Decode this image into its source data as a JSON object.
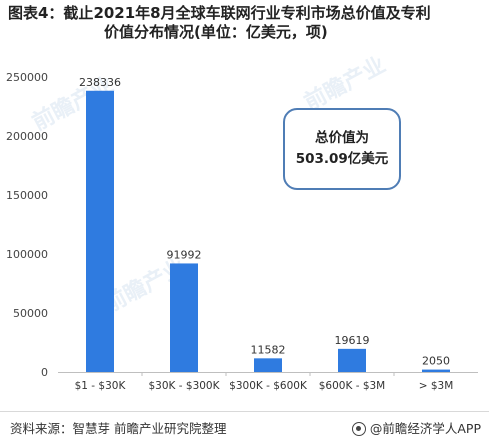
{
  "header": {
    "title_line1": "图表4：截止2021年8月全球车联网行业专利市场总价值及专利",
    "title_line2": "价值分布情况(单位：亿美元，项)"
  },
  "callout": {
    "line1": "总价值为",
    "line2": "503.09亿美元"
  },
  "footer": {
    "source": "资料来源：智慧芽 前瞻产业研究院整理",
    "brand": "@前瞻经济学人APP"
  },
  "watermark": {
    "text": "前瞻产业"
  },
  "colors": {
    "bar": "#2f7be0",
    "callout_border": "#4f7db5",
    "axis": "#bfbfbf"
  },
  "chart_data": {
    "type": "bar",
    "title": "",
    "xlabel": "",
    "ylabel": "",
    "categories": [
      "$1 - $30K",
      "$30K - $300K",
      "$300K - $600K",
      "$600K - $3M",
      "> $3M"
    ],
    "values": [
      238336,
      91992,
      11582,
      19619,
      2050
    ],
    "data_labels": [
      "238336",
      "91992",
      "11582",
      "19619",
      "2050"
    ],
    "ylim": [
      0,
      250000
    ],
    "yticks": [
      0,
      50000,
      100000,
      150000,
      200000,
      250000
    ],
    "ytick_labels": [
      "0",
      "50000",
      "100000",
      "150000",
      "200000",
      "250000"
    ],
    "grid": false,
    "legend": "none"
  }
}
